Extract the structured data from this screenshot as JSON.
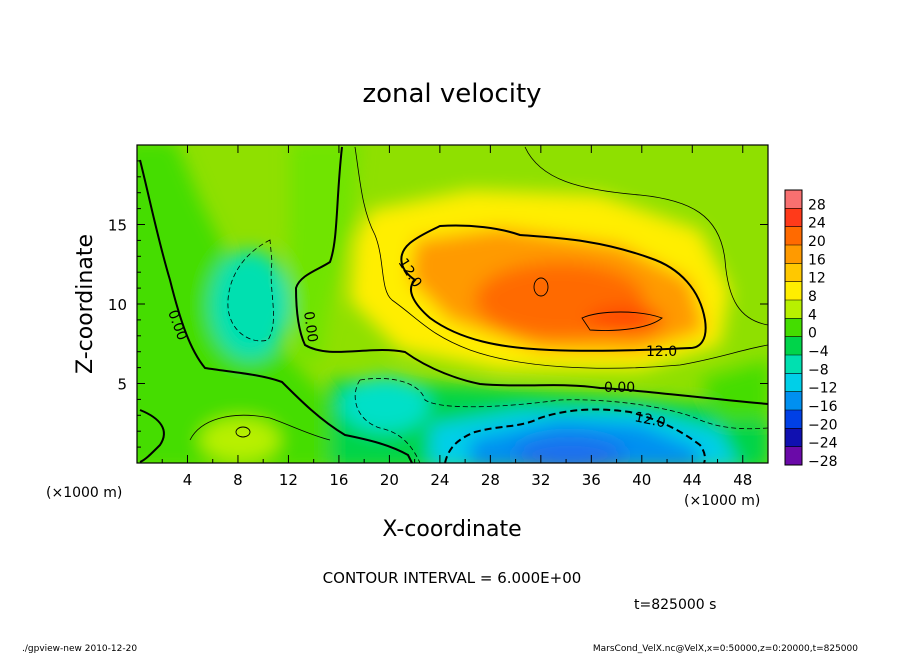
{
  "chart_data": {
    "type": "heatmap",
    "title": "zonal velocity",
    "xlabel": "X-coordinate",
    "ylabel": "Z-coordinate",
    "x_unit": "(×1000 m)",
    "z_unit": "(×1000 m)",
    "xlim": [
      0,
      50
    ],
    "ylim": [
      0,
      20
    ],
    "x_ticks": [
      "4",
      "8",
      "12",
      "16",
      "20",
      "24",
      "28",
      "32",
      "36",
      "40",
      "44",
      "48"
    ],
    "y_ticks": [
      "5",
      "10",
      "15"
    ],
    "colorbar": {
      "labels": [
        "28",
        "24",
        "20",
        "16",
        "12",
        "8",
        "4",
        "0",
        "−4",
        "−8",
        "−12",
        "−16",
        "−20",
        "−24",
        "−28"
      ],
      "colors": [
        "#f87070",
        "#ff3a1a",
        "#ff6a00",
        "#ff9a00",
        "#ffc800",
        "#ffee00",
        "#b8f000",
        "#44dd00",
        "#00d44a",
        "#00e0b0",
        "#00cfe8",
        "#0090f0",
        "#0040e6",
        "#1010b0",
        "#6a0aa8"
      ]
    },
    "contour_labels": [
      "12.0",
      "12.0",
      "0.00",
      "0.00",
      "0.00",
      "12.0"
    ],
    "contour_interval": "CONTOUR INTERVAL = 6.000E+00",
    "time_label": "t=825000 s",
    "footer_left": "./gpview-new  2010-12-20",
    "footer_right": "MarsCond_VelX.nc@VelX,x=0:50000,z=0:20000,t=825000"
  }
}
